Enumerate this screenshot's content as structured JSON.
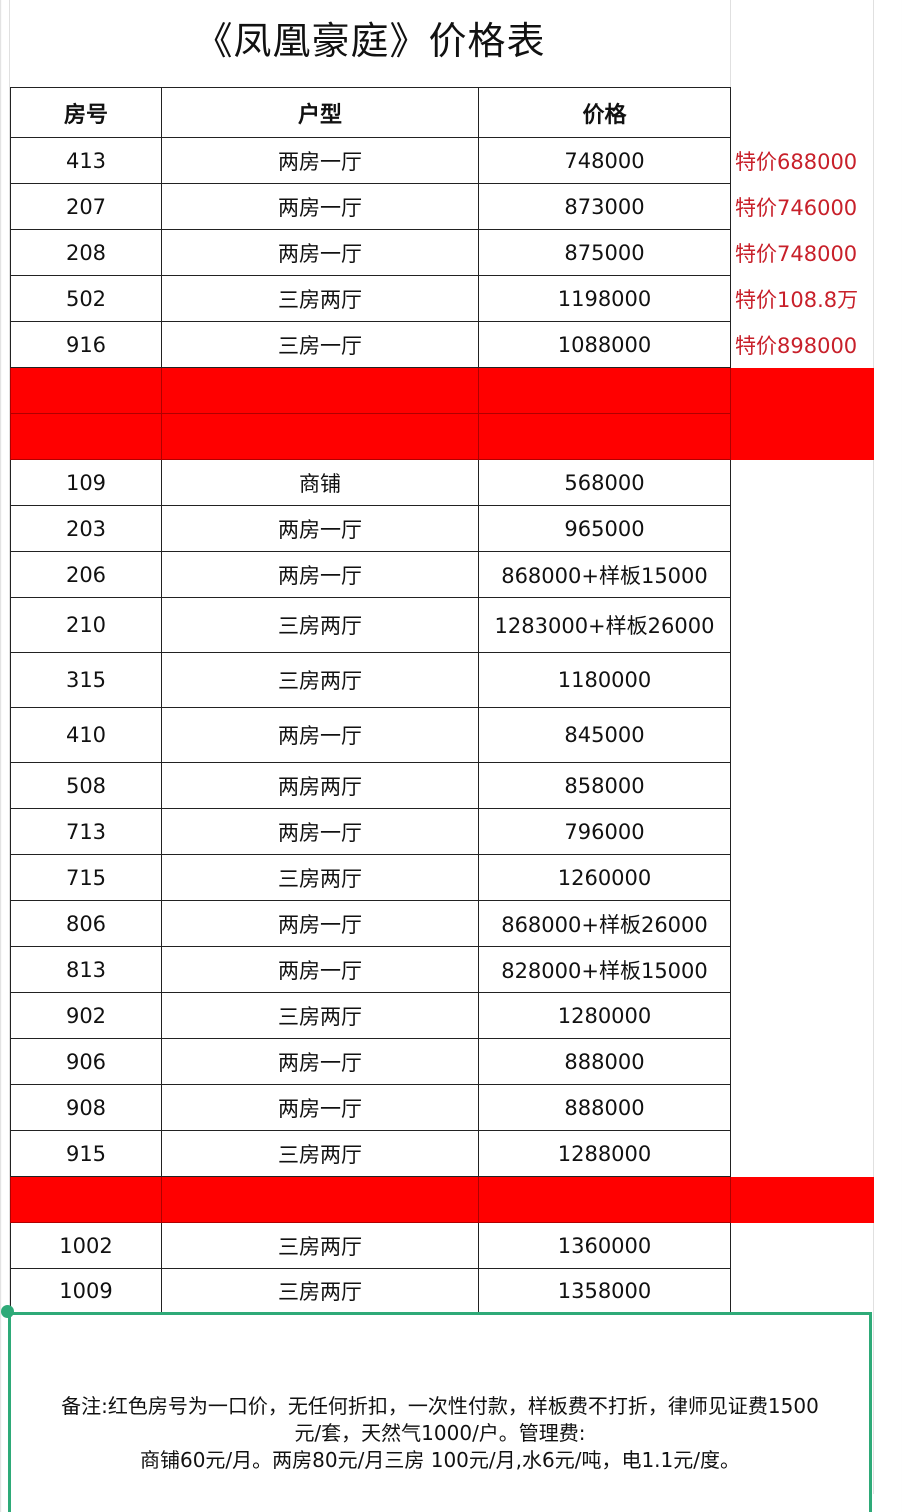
{
  "title": "《凤凰豪庭》价格表",
  "headers": [
    "房号",
    "户型",
    "价格"
  ],
  "colors": {
    "highlight_row": "#FF0000",
    "special_price_text": "#C8202A",
    "note_border": "#2EAA78"
  },
  "rows": [
    {
      "room": "413",
      "type": "两房一厅",
      "price": "748000",
      "special": "特价688000"
    },
    {
      "room": "207",
      "type": "两房一厅",
      "price": "873000",
      "special": "特价746000"
    },
    {
      "room": "208",
      "type": "两房一厅",
      "price": "875000",
      "special": "特价748000"
    },
    {
      "room": "502",
      "type": "三房两厅",
      "price": "1198000",
      "special": "特价108.8万"
    },
    {
      "room": "916",
      "type": "三房一厅",
      "price": "1088000",
      "special": "特价898000"
    },
    {
      "highlight": true
    },
    {
      "highlight": true
    },
    {
      "room": "109",
      "type": "商铺",
      "price": "568000"
    },
    {
      "room": "203",
      "type": "两房一厅",
      "price": "965000"
    },
    {
      "room": "206",
      "type": "两房一厅",
      "price": "868000+样板15000"
    },
    {
      "room": "210",
      "type": "三房两厅",
      "price": "1283000+样板26000"
    },
    {
      "room": "315",
      "type": "三房两厅",
      "price": "1180000"
    },
    {
      "room": "410",
      "type": "两房一厅",
      "price": "845000"
    },
    {
      "room": "508",
      "type": "两房两厅",
      "price": "858000"
    },
    {
      "room": "713",
      "type": "两房一厅",
      "price": "796000"
    },
    {
      "room": "715",
      "type": "三房两厅",
      "price": "1260000"
    },
    {
      "room": "806",
      "type": "两房一厅",
      "price": "868000+样板26000"
    },
    {
      "room": "813",
      "type": "两房一厅",
      "price": "828000+样板15000"
    },
    {
      "room": "902",
      "type": "三房两厅",
      "price": "1280000"
    },
    {
      "room": "906",
      "type": "两房一厅",
      "price": "888000"
    },
    {
      "room": "908",
      "type": "两房一厅",
      "price": "888000"
    },
    {
      "room": "915",
      "type": "三房两厅",
      "price": "1288000"
    },
    {
      "highlight": true
    },
    {
      "room": "1002",
      "type": "三房两厅",
      "price": "1360000"
    },
    {
      "room": "1009",
      "type": "三房两厅",
      "price": "1358000"
    }
  ],
  "note": {
    "line1": "备注:红色房号为一口价，无任何折扣，一次性付款，样板费不打折，律师见证费1500",
    "line2": "元/套，天然气1000/户。管理费:",
    "line3": "商铺60元/月。两房80元/月三房 100元/月,水6元/吨，电1.1元/度。"
  }
}
